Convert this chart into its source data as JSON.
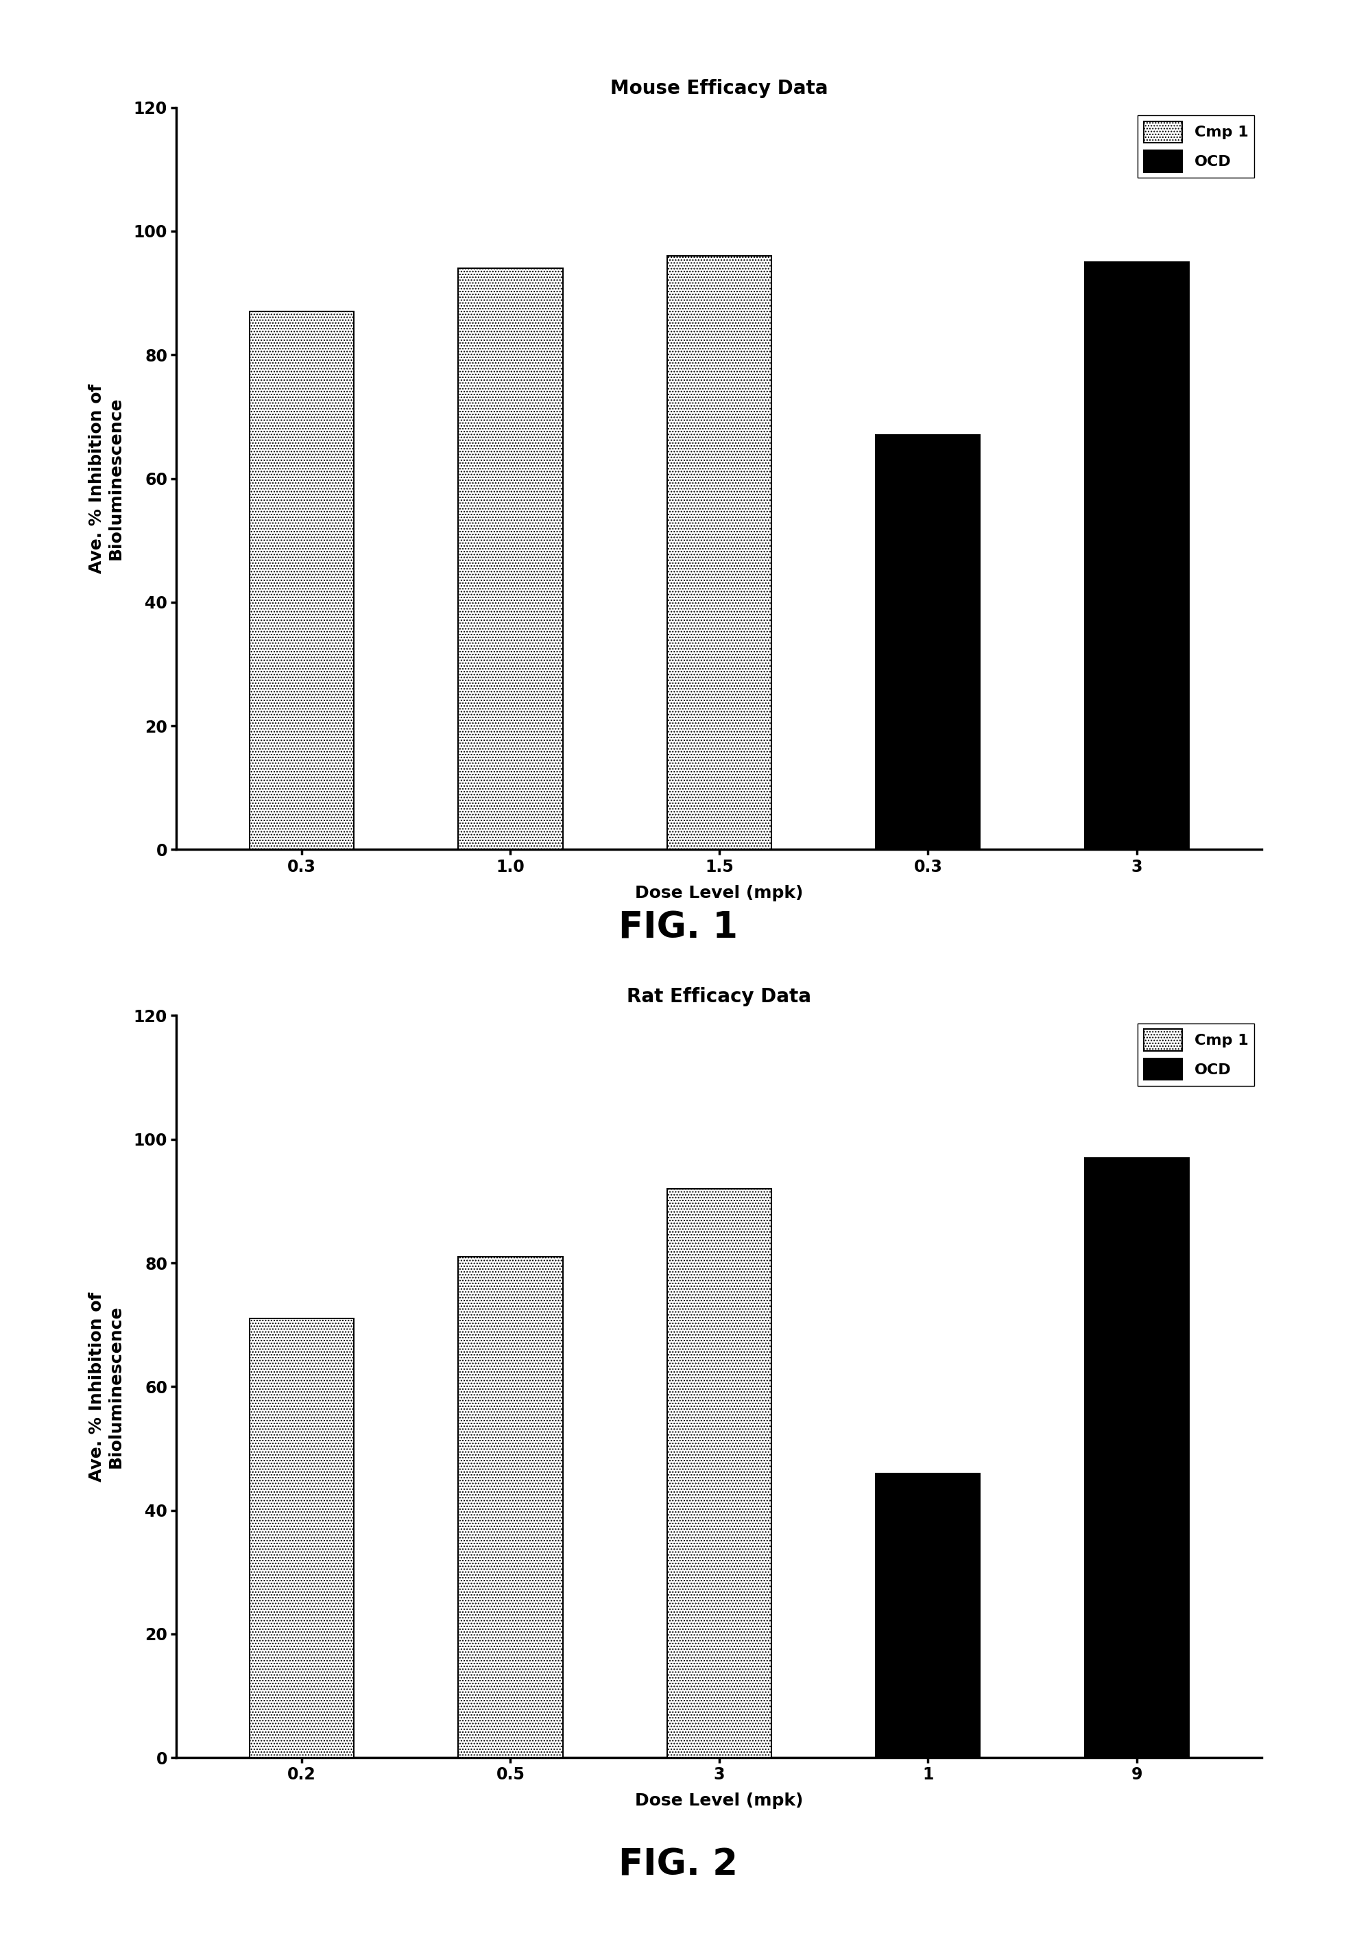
{
  "fig1": {
    "title": "Mouse Efficacy Data",
    "categories": [
      "0.3",
      "1.0",
      "1.5",
      "0.3",
      "3"
    ],
    "values": [
      87,
      94,
      96,
      67,
      95
    ],
    "colors": [
      "dotted",
      "dotted",
      "dotted",
      "black",
      "black"
    ],
    "ylabel": "Ave. % Inhibition of\nBioluminescence",
    "xlabel": "Dose Level (mpk)",
    "ylim": [
      0,
      120
    ],
    "yticks": [
      0,
      20,
      40,
      60,
      80,
      100,
      120
    ],
    "fig_label": "FIG. 1"
  },
  "fig2": {
    "title": "Rat Efficacy Data",
    "categories": [
      "0.2",
      "0.5",
      "3",
      "1",
      "9"
    ],
    "values": [
      71,
      81,
      92,
      46,
      97
    ],
    "colors": [
      "dotted",
      "dotted",
      "dotted",
      "black",
      "black"
    ],
    "ylabel": "Ave. % Inhibition of\nBioluminescence",
    "xlabel": "Dose Level (mpk)",
    "ylim": [
      0,
      120
    ],
    "yticks": [
      0,
      20,
      40,
      60,
      80,
      100,
      120
    ],
    "fig_label": "FIG. 2"
  },
  "legend_labels": [
    "Cmp 1",
    "OCD"
  ],
  "background_color": "#ffffff",
  "bar_width": 0.5,
  "dotted_facecolor": "#ffffff",
  "dotted_edgecolor": "#000000",
  "solid_facecolor": "#000000",
  "hatch_pattern": "....",
  "title_fontsize": 20,
  "label_fontsize": 18,
  "tick_fontsize": 17,
  "legend_fontsize": 16,
  "fig_label_fontsize": 38
}
